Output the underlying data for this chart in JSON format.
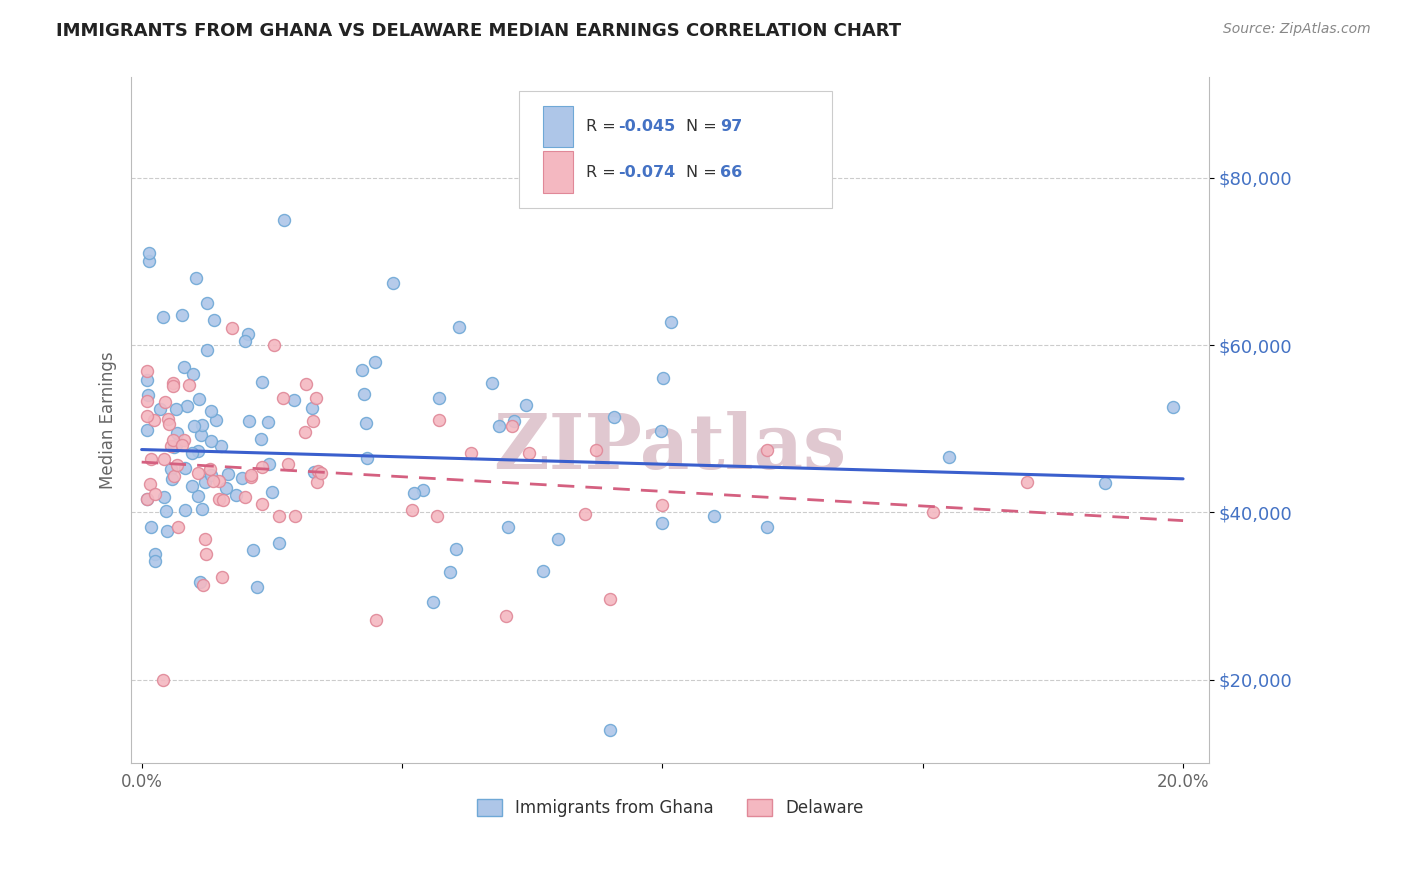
{
  "title": "IMMIGRANTS FROM GHANA VS DELAWARE MEDIAN EARNINGS CORRELATION CHART",
  "source_text": "Source: ZipAtlas.com",
  "ylabel": "Median Earnings",
  "xlim": [
    -0.002,
    0.205
  ],
  "ylim": [
    10000,
    92000
  ],
  "yticks": [
    20000,
    40000,
    60000,
    80000
  ],
  "ytick_labels": [
    "$20,000",
    "$40,000",
    "$60,000",
    "$80,000"
  ],
  "xticks": [
    0.0,
    0.05,
    0.1,
    0.15,
    0.2
  ],
  "xtick_labels": [
    "0.0%",
    "",
    "",
    "",
    "20.0%"
  ],
  "blue_line_x": [
    0.0,
    0.2
  ],
  "blue_line_y": [
    47500,
    44000
  ],
  "pink_line_x": [
    0.0,
    0.2
  ],
  "pink_line_y": [
    46000,
    39000
  ],
  "scatter_size": 75,
  "blue_face": "#aec6e8",
  "blue_edge": "#6fa8d6",
  "pink_face": "#f4b8c1",
  "pink_edge": "#e08898",
  "trend_blue": "#3a5fcd",
  "trend_pink": "#d46080",
  "ylabel_color": "#666666",
  "ytick_color": "#4472c4",
  "xtick_color": "#666666",
  "grid_color": "#cccccc",
  "watermark_color": "#e0c8d0",
  "title_color": "#222222",
  "source_color": "#888888",
  "stats_text_color": "#333333",
  "stats_value_color": "#4472c4"
}
